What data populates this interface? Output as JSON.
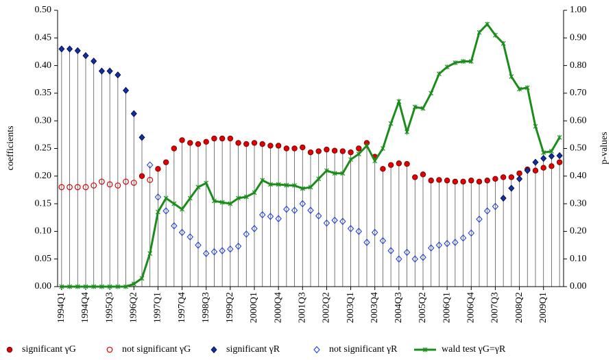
{
  "chart_data": {
    "type": "combo",
    "y_label": "coefficients",
    "y2_label": "p-values",
    "categories": [
      "1994Q1",
      null,
      null,
      "1994Q4",
      null,
      null,
      "1995Q3",
      null,
      null,
      "1996Q2",
      null,
      null,
      "1997Q1",
      null,
      null,
      "1997Q4",
      null,
      null,
      "1998Q3",
      null,
      null,
      "1999Q2",
      null,
      null,
      "2000Q1",
      null,
      null,
      "2000Q4",
      null,
      null,
      "2001Q3",
      null,
      null,
      "2002Q2",
      null,
      null,
      "2003Q1",
      null,
      null,
      "2003Q4",
      null,
      null,
      "2004Q3",
      null,
      null,
      "2005Q2",
      null,
      null,
      "2006Q1",
      null,
      null,
      "2006Q4",
      null,
      null,
      "2007Q3",
      null,
      null,
      "2008Q2",
      null,
      null,
      "2009Q1",
      null,
      null
    ],
    "ylim": [
      0,
      0.5
    ],
    "yticks": [
      {
        "value": 0,
        "label": "0.00"
      },
      {
        "value": 0.05,
        "label": "0.05"
      },
      {
        "value": 0.1,
        "label": "0.10"
      },
      {
        "value": 0.15,
        "label": "0.15"
      },
      {
        "value": 0.2,
        "label": "0.20"
      },
      {
        "value": 0.25,
        "label": "0.25"
      },
      {
        "value": 0.3,
        "label": "0.30"
      },
      {
        "value": 0.35,
        "label": "0.35"
      },
      {
        "value": 0.4,
        "label": "0.40"
      },
      {
        "value": 0.45,
        "label": "0.45"
      },
      {
        "value": 0.5,
        "label": "0.50"
      }
    ],
    "y2lim": [
      0,
      1
    ],
    "y2ticks": [
      {
        "value": 0,
        "label": "0.00"
      },
      {
        "value": 0.1,
        "label": "0.10"
      },
      {
        "value": 0.2,
        "label": "0.20"
      },
      {
        "value": 0.3,
        "label": "0.30"
      },
      {
        "value": 0.4,
        "label": "0.40"
      },
      {
        "value": 0.5,
        "label": "0.50"
      },
      {
        "value": 0.6,
        "label": "0.60"
      },
      {
        "value": 0.7,
        "label": "0.70"
      },
      {
        "value": 0.8,
        "label": "0.80"
      },
      {
        "value": 0.9,
        "label": "0.90"
      },
      {
        "value": 1,
        "label": "1.00"
      }
    ],
    "stems": true,
    "series": [
      {
        "name": "significant γG",
        "type": "scatter",
        "marker": "circle",
        "filled": true,
        "color": "#e00000",
        "values": [
          null,
          null,
          null,
          null,
          null,
          null,
          null,
          null,
          null,
          null,
          0.2,
          null,
          0.213,
          0.225,
          0.25,
          0.265,
          0.26,
          0.258,
          0.262,
          0.268,
          0.268,
          0.268,
          0.26,
          0.258,
          0.26,
          0.258,
          0.255,
          0.255,
          0.25,
          0.25,
          0.252,
          0.243,
          0.245,
          0.248,
          0.246,
          0.245,
          0.243,
          0.25,
          0.26,
          0.235,
          0.213,
          0.22,
          0.223,
          0.222,
          0.198,
          0.203,
          0.192,
          0.193,
          0.192,
          0.19,
          0.19,
          0.192,
          0.19,
          0.192,
          0.195,
          0.198,
          0.198,
          0.205,
          0.212,
          0.21,
          0.215,
          0.218,
          0.225
        ]
      },
      {
        "name": "not significant γG",
        "type": "scatter",
        "marker": "circle",
        "filled": false,
        "color": "#e00000",
        "values": [
          0.18,
          0.18,
          0.18,
          0.18,
          0.183,
          0.19,
          0.185,
          0.183,
          0.19,
          0.188,
          null,
          0.193,
          null,
          null,
          null,
          null,
          null,
          null,
          null,
          null,
          null,
          null,
          null,
          null,
          null,
          null,
          null,
          null,
          null,
          null,
          null,
          null,
          null,
          null,
          null,
          null,
          null,
          null,
          null,
          null,
          null,
          null,
          null,
          null,
          null,
          null,
          null,
          null,
          null,
          null,
          null,
          null,
          null,
          null,
          null,
          null,
          null,
          null,
          null,
          null,
          null,
          null,
          null
        ]
      },
      {
        "name": "significant γR",
        "type": "scatter",
        "marker": "diamond",
        "filled": true,
        "color": "#1030a0",
        "values": [
          0.43,
          0.43,
          0.427,
          0.418,
          0.408,
          0.39,
          0.39,
          0.383,
          0.355,
          0.313,
          0.27,
          null,
          null,
          null,
          null,
          null,
          null,
          null,
          null,
          null,
          null,
          null,
          null,
          null,
          null,
          null,
          null,
          null,
          null,
          null,
          null,
          null,
          null,
          null,
          null,
          null,
          null,
          null,
          null,
          null,
          null,
          null,
          null,
          null,
          null,
          null,
          null,
          null,
          null,
          null,
          null,
          null,
          null,
          null,
          null,
          0.16,
          0.178,
          0.195,
          0.21,
          0.225,
          0.232,
          0.236,
          0.237
        ]
      },
      {
        "name": "not significant γR",
        "type": "scatter",
        "marker": "diamond",
        "filled": false,
        "color": "#2040e0",
        "values": [
          null,
          null,
          null,
          null,
          null,
          null,
          null,
          null,
          null,
          null,
          null,
          0.22,
          0.162,
          0.137,
          0.11,
          0.098,
          0.09,
          0.075,
          0.06,
          0.063,
          0.065,
          0.068,
          0.073,
          0.095,
          0.105,
          0.13,
          0.127,
          0.123,
          0.14,
          0.138,
          0.15,
          0.138,
          0.128,
          0.115,
          0.12,
          0.118,
          0.105,
          0.1,
          0.08,
          0.098,
          0.083,
          0.065,
          0.05,
          0.062,
          0.05,
          0.053,
          0.07,
          0.075,
          0.078,
          0.08,
          0.088,
          0.097,
          0.122,
          0.137,
          0.145,
          null,
          null,
          null,
          null,
          null,
          null,
          null,
          null
        ]
      },
      {
        "name": "wald test γG=γR",
        "type": "line",
        "marker": "star",
        "axis": "y2",
        "color": "#1a8c1a",
        "values": [
          0,
          0,
          0,
          0,
          0,
          0,
          0,
          0,
          0,
          0.01,
          0.03,
          0.12,
          0.27,
          0.32,
          0.3,
          0.28,
          0.32,
          0.36,
          0.375,
          0.31,
          0.305,
          0.3,
          0.32,
          0.325,
          0.34,
          0.385,
          0.37,
          0.37,
          0.367,
          0.366,
          0.355,
          0.36,
          0.39,
          0.42,
          0.41,
          0.41,
          0.46,
          0.48,
          0.51,
          0.455,
          0.5,
          0.59,
          0.67,
          0.56,
          0.65,
          0.645,
          0.7,
          0.77,
          0.795,
          0.81,
          0.815,
          0.815,
          0.92,
          0.95,
          0.91,
          0.88,
          0.76,
          0.715,
          0.72,
          0.58,
          0.485,
          0.49,
          0.54
        ]
      }
    ]
  }
}
